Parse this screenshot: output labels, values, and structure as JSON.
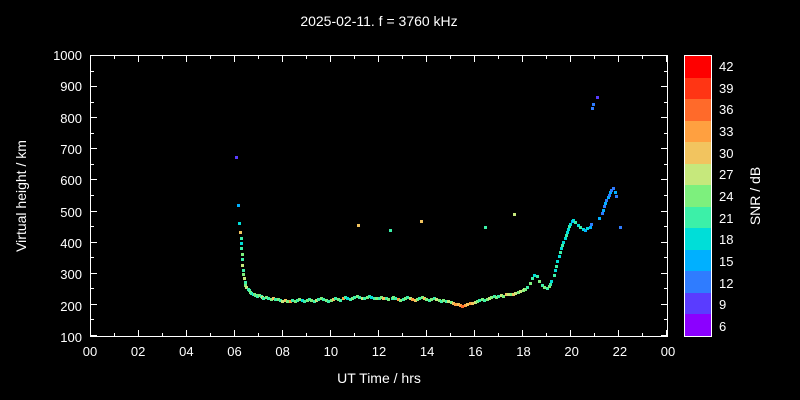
{
  "chart_data": {
    "type": "scatter",
    "title": "2025-02-11. f = 3760 kHz",
    "xlabel": "UT Time / hrs",
    "ylabel": "Virtual height / km",
    "xlim": [
      0,
      24
    ],
    "ylim": [
      100,
      1000
    ],
    "grid": false,
    "background": "#000000",
    "axis_color": "#ffffff",
    "x_ticks": [
      {
        "v": 0,
        "label": "00"
      },
      {
        "v": 2,
        "label": "02"
      },
      {
        "v": 4,
        "label": "04"
      },
      {
        "v": 6,
        "label": "06"
      },
      {
        "v": 8,
        "label": "08"
      },
      {
        "v": 10,
        "label": "10"
      },
      {
        "v": 12,
        "label": "12"
      },
      {
        "v": 14,
        "label": "14"
      },
      {
        "v": 16,
        "label": "16"
      },
      {
        "v": 18,
        "label": "18"
      },
      {
        "v": 20,
        "label": "20"
      },
      {
        "v": 22,
        "label": "22"
      },
      {
        "v": 24,
        "label": "00"
      }
    ],
    "x_minor_ticks": [
      1,
      3,
      5,
      7,
      9,
      11,
      13,
      15,
      17,
      19,
      21,
      23
    ],
    "y_ticks": [
      {
        "v": 100,
        "label": "100"
      },
      {
        "v": 200,
        "label": "200"
      },
      {
        "v": 300,
        "label": "300"
      },
      {
        "v": 400,
        "label": "400"
      },
      {
        "v": 500,
        "label": "500"
      },
      {
        "v": 600,
        "label": "600"
      },
      {
        "v": 700,
        "label": "700"
      },
      {
        "v": 800,
        "label": "800"
      },
      {
        "v": 900,
        "label": "900"
      },
      {
        "v": 1000,
        "label": "1000"
      }
    ],
    "y_minor_ticks": [
      150,
      250,
      350,
      450,
      550,
      650,
      750,
      850,
      950
    ],
    "colorbar": {
      "label": "SNR / dB",
      "levels": [
        {
          "v": 6,
          "color": "#8b00ff"
        },
        {
          "v": 9,
          "color": "#5a3cff"
        },
        {
          "v": 12,
          "color": "#2f7cff"
        },
        {
          "v": 15,
          "color": "#00b0ff"
        },
        {
          "v": 18,
          "color": "#00ded8"
        },
        {
          "v": 21,
          "color": "#3cf0a8"
        },
        {
          "v": 24,
          "color": "#7df07d"
        },
        {
          "v": 27,
          "color": "#c6e87c"
        },
        {
          "v": 30,
          "color": "#f2c45f"
        },
        {
          "v": 33,
          "color": "#ffa040"
        },
        {
          "v": 36,
          "color": "#ff6a2a"
        },
        {
          "v": 39,
          "color": "#ff3514"
        },
        {
          "v": 42,
          "color": "#fe0000"
        }
      ]
    },
    "points": [
      [
        6.05,
        675,
        9
      ],
      [
        6.15,
        520,
        15
      ],
      [
        6.2,
        462,
        18
      ],
      [
        6.22,
        432,
        30
      ],
      [
        6.25,
        415,
        21
      ],
      [
        6.27,
        398,
        18
      ],
      [
        6.28,
        382,
        21
      ],
      [
        6.3,
        363,
        24
      ],
      [
        6.32,
        345,
        21
      ],
      [
        6.33,
        328,
        27
      ],
      [
        6.35,
        312,
        21
      ],
      [
        6.37,
        298,
        24
      ],
      [
        6.4,
        286,
        27
      ],
      [
        6.42,
        273,
        21
      ],
      [
        6.45,
        263,
        24
      ],
      [
        6.5,
        255,
        27
      ],
      [
        6.55,
        250,
        21
      ],
      [
        6.6,
        245,
        21
      ],
      [
        6.65,
        241,
        24
      ],
      [
        6.7,
        238,
        21
      ],
      [
        6.75,
        235,
        18
      ],
      [
        6.8,
        232,
        24
      ],
      [
        6.85,
        230,
        21
      ],
      [
        6.9,
        231,
        24
      ],
      [
        6.95,
        228,
        21
      ],
      [
        7.0,
        230,
        24
      ],
      [
        7.1,
        228,
        21
      ],
      [
        7.15,
        225,
        27
      ],
      [
        7.2,
        222,
        21
      ],
      [
        7.3,
        224,
        24
      ],
      [
        7.4,
        220,
        21
      ],
      [
        7.5,
        218,
        24
      ],
      [
        7.6,
        220,
        30
      ],
      [
        7.7,
        216,
        21
      ],
      [
        7.8,
        218,
        24
      ],
      [
        7.9,
        215,
        21
      ],
      [
        8.0,
        212,
        27
      ],
      [
        8.1,
        214,
        30
      ],
      [
        8.2,
        212,
        24
      ],
      [
        8.3,
        210,
        33
      ],
      [
        8.4,
        214,
        21
      ],
      [
        8.5,
        212,
        24
      ],
      [
        8.6,
        215,
        21
      ],
      [
        8.7,
        217,
        24
      ],
      [
        8.8,
        215,
        18
      ],
      [
        8.9,
        212,
        21
      ],
      [
        9.0,
        215,
        24
      ],
      [
        9.1,
        218,
        21
      ],
      [
        9.2,
        215,
        24
      ],
      [
        9.3,
        212,
        21
      ],
      [
        9.4,
        215,
        27
      ],
      [
        9.5,
        218,
        21
      ],
      [
        9.6,
        221,
        24
      ],
      [
        9.7,
        218,
        21
      ],
      [
        9.8,
        215,
        24
      ],
      [
        9.9,
        212,
        21
      ],
      [
        10.0,
        215,
        24
      ],
      [
        10.1,
        218,
        30
      ],
      [
        10.2,
        221,
        21
      ],
      [
        10.3,
        218,
        24
      ],
      [
        10.4,
        215,
        21
      ],
      [
        10.5,
        220,
        33
      ],
      [
        10.6,
        224,
        21
      ],
      [
        10.7,
        221,
        18
      ],
      [
        10.8,
        218,
        21
      ],
      [
        10.9,
        221,
        24
      ],
      [
        11.0,
        224,
        21
      ],
      [
        11.1,
        227,
        24
      ],
      [
        11.15,
        455,
        30
      ],
      [
        11.2,
        225,
        21
      ],
      [
        11.3,
        222,
        27
      ],
      [
        11.4,
        220,
        21
      ],
      [
        11.5,
        224,
        24
      ],
      [
        11.6,
        227,
        21
      ],
      [
        11.7,
        224,
        18
      ],
      [
        11.8,
        221,
        21
      ],
      [
        11.9,
        219,
        24
      ],
      [
        12.0,
        221,
        21
      ],
      [
        12.1,
        224,
        24
      ],
      [
        12.2,
        221,
        30
      ],
      [
        12.3,
        219,
        21
      ],
      [
        12.4,
        218,
        24
      ],
      [
        12.5,
        440,
        21
      ],
      [
        12.55,
        221,
        21
      ],
      [
        12.6,
        224,
        24
      ],
      [
        12.7,
        221,
        21
      ],
      [
        12.8,
        218,
        33
      ],
      [
        12.9,
        215,
        24
      ],
      [
        13.0,
        218,
        21
      ],
      [
        13.1,
        221,
        24
      ],
      [
        13.2,
        224,
        21
      ],
      [
        13.3,
        221,
        27
      ],
      [
        13.4,
        218,
        33
      ],
      [
        13.5,
        215,
        30
      ],
      [
        13.6,
        218,
        24
      ],
      [
        13.7,
        221,
        21
      ],
      [
        13.75,
        468,
        30
      ],
      [
        13.8,
        224,
        24
      ],
      [
        13.9,
        221,
        30
      ],
      [
        14.0,
        218,
        24
      ],
      [
        14.1,
        215,
        21
      ],
      [
        14.2,
        218,
        24
      ],
      [
        14.3,
        221,
        21
      ],
      [
        14.4,
        218,
        27
      ],
      [
        14.5,
        215,
        24
      ],
      [
        14.6,
        212,
        21
      ],
      [
        14.7,
        214,
        24
      ],
      [
        14.8,
        212,
        21
      ],
      [
        14.9,
        210,
        27
      ],
      [
        15.0,
        208,
        24
      ],
      [
        15.1,
        205,
        30
      ],
      [
        15.2,
        202,
        33
      ],
      [
        15.3,
        200,
        30
      ],
      [
        15.4,
        198,
        33
      ],
      [
        15.5,
        196,
        36
      ],
      [
        15.6,
        198,
        33
      ],
      [
        15.7,
        200,
        30
      ],
      [
        15.8,
        203,
        33
      ],
      [
        15.9,
        205,
        30
      ],
      [
        16.0,
        208,
        27
      ],
      [
        16.1,
        212,
        24
      ],
      [
        16.2,
        215,
        21
      ],
      [
        16.3,
        217,
        24
      ],
      [
        16.4,
        215,
        21
      ],
      [
        16.45,
        450,
        21
      ],
      [
        16.5,
        218,
        24
      ],
      [
        16.6,
        221,
        27
      ],
      [
        16.7,
        224,
        24
      ],
      [
        16.8,
        227,
        21
      ],
      [
        16.9,
        225,
        24
      ],
      [
        17.0,
        228,
        21
      ],
      [
        17.1,
        230,
        27
      ],
      [
        17.2,
        228,
        24
      ],
      [
        17.3,
        232,
        30
      ],
      [
        17.4,
        234,
        27
      ],
      [
        17.5,
        232,
        24
      ],
      [
        17.6,
        235,
        30
      ],
      [
        17.65,
        490,
        27
      ],
      [
        17.7,
        237,
        27
      ],
      [
        17.8,
        240,
        24
      ],
      [
        17.9,
        242,
        27
      ],
      [
        18.0,
        245,
        24
      ],
      [
        18.05,
        248,
        27
      ],
      [
        18.1,
        251,
        24
      ],
      [
        18.2,
        256,
        21
      ],
      [
        18.3,
        270,
        24
      ],
      [
        18.4,
        284,
        21
      ],
      [
        18.5,
        295,
        18
      ],
      [
        18.6,
        290,
        21
      ],
      [
        18.7,
        276,
        24
      ],
      [
        18.8,
        263,
        21
      ],
      [
        18.9,
        255,
        24
      ],
      [
        19.0,
        252,
        21
      ],
      [
        19.1,
        258,
        24
      ],
      [
        19.15,
        265,
        21
      ],
      [
        19.2,
        275,
        18
      ],
      [
        19.3,
        295,
        21
      ],
      [
        19.35,
        310,
        18
      ],
      [
        19.4,
        325,
        21
      ],
      [
        19.45,
        340,
        18
      ],
      [
        19.5,
        355,
        18
      ],
      [
        19.55,
        368,
        21
      ],
      [
        19.6,
        380,
        18
      ],
      [
        19.65,
        392,
        21
      ],
      [
        19.7,
        402,
        18
      ],
      [
        19.75,
        412,
        18
      ],
      [
        19.8,
        422,
        21
      ],
      [
        19.85,
        432,
        18
      ],
      [
        19.9,
        442,
        18
      ],
      [
        19.95,
        452,
        21
      ],
      [
        20.0,
        460,
        18
      ],
      [
        20.05,
        468,
        15
      ],
      [
        20.1,
        472,
        18
      ],
      [
        20.2,
        465,
        21
      ],
      [
        20.3,
        455,
        18
      ],
      [
        20.4,
        448,
        21
      ],
      [
        20.5,
        442,
        18
      ],
      [
        20.6,
        440,
        15
      ],
      [
        20.7,
        444,
        18
      ],
      [
        20.8,
        450,
        15
      ],
      [
        20.85,
        458,
        12
      ],
      [
        20.9,
        832,
        12
      ],
      [
        20.95,
        845,
        12
      ],
      [
        21.1,
        868,
        9
      ],
      [
        21.2,
        478,
        15
      ],
      [
        21.3,
        495,
        12
      ],
      [
        21.35,
        505,
        15
      ],
      [
        21.4,
        515,
        12
      ],
      [
        21.45,
        525,
        15
      ],
      [
        21.5,
        535,
        12
      ],
      [
        21.55,
        545,
        15
      ],
      [
        21.6,
        552,
        12
      ],
      [
        21.65,
        560,
        15
      ],
      [
        21.7,
        568,
        12
      ],
      [
        21.75,
        575,
        12
      ],
      [
        21.85,
        560,
        15
      ],
      [
        21.9,
        548,
        12
      ],
      [
        22.05,
        450,
        12
      ]
    ]
  }
}
